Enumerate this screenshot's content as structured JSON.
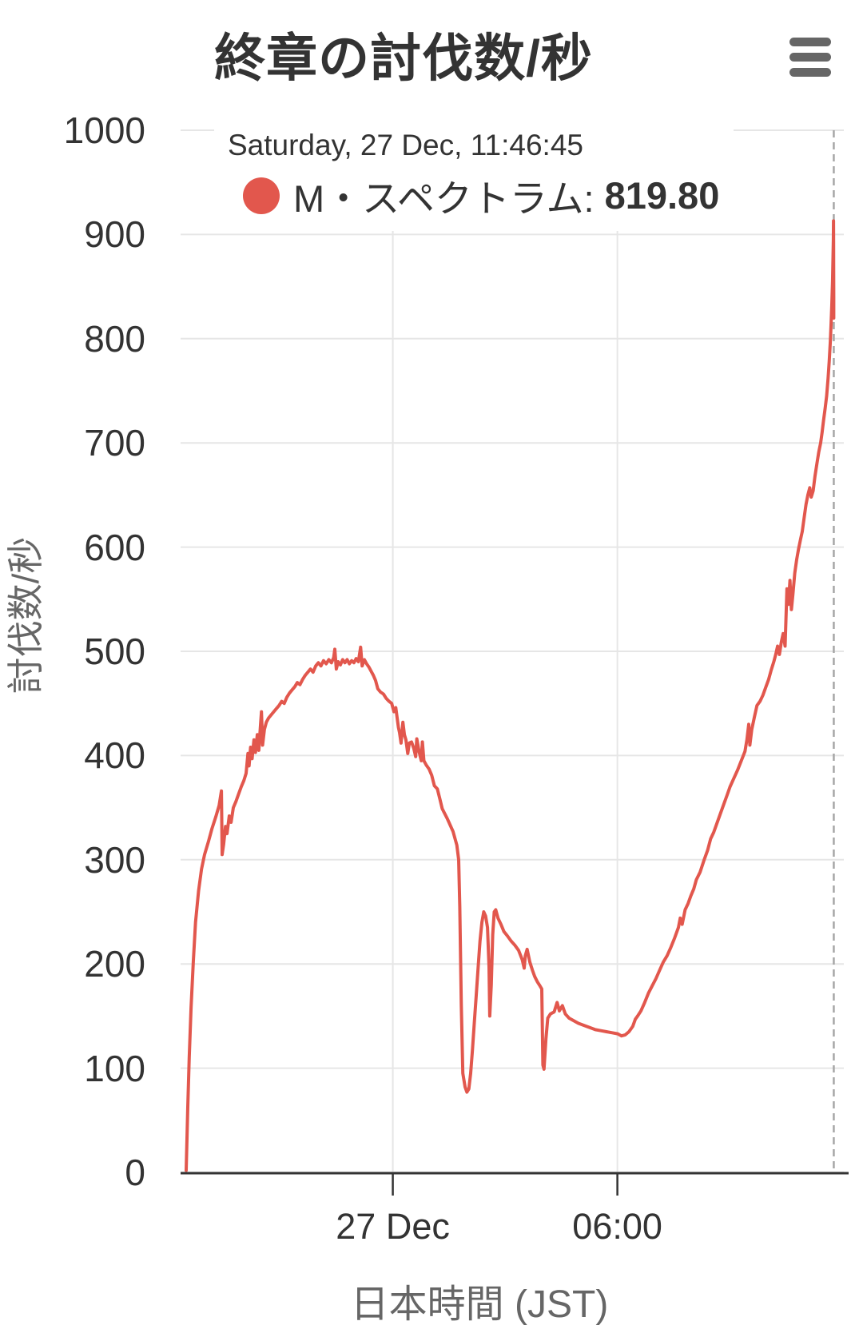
{
  "header": {
    "title": "終章の討伐数/秒",
    "menu_icon": "hamburger-icon"
  },
  "tooltip": {
    "date": "Saturday, 27 Dec, 11:46:45",
    "series_label": "M・スペクトラム: ",
    "value": "819.80",
    "marker_icon": "filled-circle"
  },
  "colors": {
    "accent": "#e2574d",
    "text_dark": "#333333",
    "text_gray": "#666666",
    "grid": "#e6e6e6",
    "axis": "#333333",
    "crosshair": "#a6a6a6",
    "icon": "#666666"
  },
  "chart_data": {
    "type": "line",
    "title": "終章の討伐数/秒",
    "xlabel": "日本時間 (JST)",
    "ylabel": "討伐数/秒",
    "ylim": [
      0,
      1000
    ],
    "yticks": [
      0,
      100,
      200,
      300,
      400,
      500,
      600,
      700,
      800,
      900,
      1000
    ],
    "xlim_hours": [
      -5.67,
      12.05
    ],
    "xticks": [
      {
        "hour": 0,
        "label": "27 Dec"
      },
      {
        "hour": 6,
        "label": "06:00"
      }
    ],
    "grid": true,
    "legend_position": "none",
    "crosshair_hour": 11.782,
    "x_unit": "hours relative to 27 Dec 00:00 JST",
    "series": [
      {
        "name": "M・スペクトラム",
        "color": "#e2574d",
        "last_value": 819.8,
        "points": [
          [
            -5.52,
            2
          ],
          [
            -5.48,
            60
          ],
          [
            -5.44,
            110
          ],
          [
            -5.39,
            158
          ],
          [
            -5.33,
            202
          ],
          [
            -5.27,
            240
          ],
          [
            -5.19,
            270
          ],
          [
            -5.11,
            291
          ],
          [
            -5.03,
            305
          ],
          [
            -4.93,
            317
          ],
          [
            -4.83,
            330
          ],
          [
            -4.73,
            341
          ],
          [
            -4.64,
            352
          ],
          [
            -4.58,
            366
          ],
          [
            -4.56,
            305
          ],
          [
            -4.52,
            315
          ],
          [
            -4.47,
            332
          ],
          [
            -4.43,
            325
          ],
          [
            -4.37,
            342
          ],
          [
            -4.32,
            336
          ],
          [
            -4.26,
            350
          ],
          [
            -4.19,
            356
          ],
          [
            -4.12,
            363
          ],
          [
            -4.05,
            370
          ],
          [
            -3.98,
            376
          ],
          [
            -3.92,
            383
          ],
          [
            -3.87,
            402
          ],
          [
            -3.84,
            390
          ],
          [
            -3.8,
            408
          ],
          [
            -3.76,
            397
          ],
          [
            -3.71,
            415
          ],
          [
            -3.67,
            403
          ],
          [
            -3.62,
            420
          ],
          [
            -3.58,
            405
          ],
          [
            -3.54,
            427
          ],
          [
            -3.51,
            442
          ],
          [
            -3.48,
            410
          ],
          [
            -3.43,
            425
          ],
          [
            -3.38,
            432
          ],
          [
            -3.32,
            436
          ],
          [
            -3.25,
            439
          ],
          [
            -3.18,
            442
          ],
          [
            -3.11,
            445
          ],
          [
            -3.04,
            448
          ],
          [
            -2.97,
            452
          ],
          [
            -2.9,
            450
          ],
          [
            -2.83,
            456
          ],
          [
            -2.76,
            460
          ],
          [
            -2.69,
            463
          ],
          [
            -2.62,
            466
          ],
          [
            -2.55,
            470
          ],
          [
            -2.48,
            468
          ],
          [
            -2.41,
            473
          ],
          [
            -2.34,
            477
          ],
          [
            -2.27,
            480
          ],
          [
            -2.2,
            483
          ],
          [
            -2.13,
            480
          ],
          [
            -2.06,
            486
          ],
          [
            -1.99,
            489
          ],
          [
            -1.92,
            486
          ],
          [
            -1.85,
            491
          ],
          [
            -1.78,
            488
          ],
          [
            -1.71,
            492
          ],
          [
            -1.64,
            489
          ],
          [
            -1.58,
            494
          ],
          [
            -1.55,
            502
          ],
          [
            -1.51,
            483
          ],
          [
            -1.46,
            490
          ],
          [
            -1.4,
            487
          ],
          [
            -1.34,
            492
          ],
          [
            -1.28,
            489
          ],
          [
            -1.22,
            492
          ],
          [
            -1.16,
            488
          ],
          [
            -1.1,
            491
          ],
          [
            -1.04,
            489
          ],
          [
            -0.98,
            493
          ],
          [
            -0.92,
            490
          ],
          [
            -0.86,
            504
          ],
          [
            -0.82,
            486
          ],
          [
            -0.76,
            492
          ],
          [
            -0.7,
            488
          ],
          [
            -0.64,
            485
          ],
          [
            -0.58,
            481
          ],
          [
            -0.52,
            477
          ],
          [
            -0.46,
            472
          ],
          [
            -0.4,
            464
          ],
          [
            -0.33,
            461
          ],
          [
            -0.25,
            459
          ],
          [
            -0.18,
            455
          ],
          [
            -0.1,
            452
          ],
          [
            -0.03,
            450
          ],
          [
            0.03,
            442
          ],
          [
            0.08,
            446
          ],
          [
            0.12,
            435
          ],
          [
            0.15,
            427
          ],
          [
            0.18,
            422
          ],
          [
            0.22,
            412
          ],
          [
            0.27,
            432
          ],
          [
            0.31,
            420
          ],
          [
            0.35,
            415
          ],
          [
            0.4,
            402
          ],
          [
            0.44,
            412
          ],
          [
            0.5,
            413
          ],
          [
            0.56,
            407
          ],
          [
            0.61,
            399
          ],
          [
            0.64,
            416
          ],
          [
            0.7,
            404
          ],
          [
            0.76,
            395
          ],
          [
            0.79,
            413
          ],
          [
            0.83,
            395
          ],
          [
            0.89,
            391
          ],
          [
            0.97,
            387
          ],
          [
            1.04,
            381
          ],
          [
            1.11,
            371
          ],
          [
            1.19,
            368
          ],
          [
            1.26,
            358
          ],
          [
            1.32,
            349
          ],
          [
            1.46,
            339
          ],
          [
            1.61,
            327
          ],
          [
            1.71,
            314
          ],
          [
            1.76,
            300
          ],
          [
            1.79,
            255
          ],
          [
            1.83,
            160
          ],
          [
            1.87,
            95
          ],
          [
            1.93,
            82
          ],
          [
            1.98,
            77
          ],
          [
            2.03,
            80
          ],
          [
            2.08,
            95
          ],
          [
            2.13,
            118
          ],
          [
            2.18,
            145
          ],
          [
            2.23,
            170
          ],
          [
            2.28,
            197
          ],
          [
            2.33,
            222
          ],
          [
            2.38,
            240
          ],
          [
            2.43,
            250
          ],
          [
            2.48,
            246
          ],
          [
            2.53,
            235
          ],
          [
            2.57,
            197
          ],
          [
            2.59,
            150
          ],
          [
            2.63,
            180
          ],
          [
            2.67,
            228
          ],
          [
            2.71,
            250
          ],
          [
            2.75,
            252
          ],
          [
            2.81,
            244
          ],
          [
            2.89,
            238
          ],
          [
            2.97,
            231
          ],
          [
            3.06,
            227
          ],
          [
            3.16,
            222
          ],
          [
            3.26,
            218
          ],
          [
            3.36,
            213
          ],
          [
            3.46,
            204
          ],
          [
            3.51,
            196
          ],
          [
            3.54,
            208
          ],
          [
            3.59,
            214
          ],
          [
            3.66,
            202
          ],
          [
            3.73,
            194
          ],
          [
            3.79,
            188
          ],
          [
            3.86,
            183
          ],
          [
            3.93,
            179
          ],
          [
            3.98,
            176
          ],
          [
            4.01,
            103
          ],
          [
            4.04,
            99
          ],
          [
            4.09,
            128
          ],
          [
            4.14,
            148
          ],
          [
            4.21,
            152
          ],
          [
            4.31,
            154
          ],
          [
            4.39,
            163
          ],
          [
            4.45,
            155
          ],
          [
            4.53,
            160
          ],
          [
            4.61,
            152
          ],
          [
            4.71,
            148
          ],
          [
            4.81,
            146
          ],
          [
            4.96,
            143
          ],
          [
            5.11,
            141
          ],
          [
            5.26,
            139
          ],
          [
            5.41,
            137
          ],
          [
            5.56,
            136
          ],
          [
            5.71,
            135
          ],
          [
            5.86,
            134
          ],
          [
            6.01,
            133
          ],
          [
            6.11,
            131
          ],
          [
            6.21,
            132
          ],
          [
            6.31,
            135
          ],
          [
            6.41,
            140
          ],
          [
            6.48,
            147
          ],
          [
            6.54,
            150
          ],
          [
            6.63,
            155
          ],
          [
            6.73,
            163
          ],
          [
            6.83,
            172
          ],
          [
            6.93,
            179
          ],
          [
            7.03,
            186
          ],
          [
            7.13,
            194
          ],
          [
            7.23,
            202
          ],
          [
            7.33,
            208
          ],
          [
            7.43,
            216
          ],
          [
            7.53,
            225
          ],
          [
            7.63,
            235
          ],
          [
            7.68,
            244
          ],
          [
            7.73,
            238
          ],
          [
            7.81,
            252
          ],
          [
            7.89,
            258
          ],
          [
            7.96,
            265
          ],
          [
            8.04,
            272
          ],
          [
            8.11,
            281
          ],
          [
            8.21,
            288
          ],
          [
            8.31,
            299
          ],
          [
            8.41,
            309
          ],
          [
            8.49,
            320
          ],
          [
            8.57,
            326
          ],
          [
            8.66,
            335
          ],
          [
            8.76,
            345
          ],
          [
            8.86,
            355
          ],
          [
            8.93,
            362
          ],
          [
            9.01,
            370
          ],
          [
            9.11,
            378
          ],
          [
            9.21,
            386
          ],
          [
            9.31,
            395
          ],
          [
            9.41,
            404
          ],
          [
            9.46,
            415
          ],
          [
            9.51,
            430
          ],
          [
            9.54,
            410
          ],
          [
            9.59,
            425
          ],
          [
            9.66,
            437
          ],
          [
            9.73,
            448
          ],
          [
            9.81,
            452
          ],
          [
            9.89,
            458
          ],
          [
            9.96,
            465
          ],
          [
            10.04,
            473
          ],
          [
            10.11,
            482
          ],
          [
            10.18,
            490
          ],
          [
            10.23,
            497
          ],
          [
            10.28,
            505
          ],
          [
            10.33,
            497
          ],
          [
            10.38,
            509
          ],
          [
            10.43,
            517
          ],
          [
            10.48,
            505
          ],
          [
            10.53,
            560
          ],
          [
            10.57,
            545
          ],
          [
            10.61,
            568
          ],
          [
            10.65,
            540
          ],
          [
            10.69,
            555
          ],
          [
            10.74,
            575
          ],
          [
            10.79,
            588
          ],
          [
            10.84,
            598
          ],
          [
            10.89,
            607
          ],
          [
            10.94,
            615
          ],
          [
            10.99,
            628
          ],
          [
            11.04,
            641
          ],
          [
            11.09,
            650
          ],
          [
            11.14,
            657
          ],
          [
            11.18,
            648
          ],
          [
            11.23,
            654
          ],
          [
            11.28,
            668
          ],
          [
            11.33,
            680
          ],
          [
            11.38,
            691
          ],
          [
            11.43,
            700
          ],
          [
            11.47,
            710
          ],
          [
            11.51,
            722
          ],
          [
            11.55,
            733
          ],
          [
            11.59,
            745
          ],
          [
            11.63,
            762
          ],
          [
            11.66,
            778
          ],
          [
            11.69,
            797
          ],
          [
            11.71,
            815
          ],
          [
            11.73,
            833
          ],
          [
            11.75,
            855
          ],
          [
            11.76,
            875
          ],
          [
            11.77,
            895
          ],
          [
            11.775,
            913
          ],
          [
            11.777,
            893
          ],
          [
            11.779,
            862
          ],
          [
            11.78,
            840
          ],
          [
            11.782,
            819.8
          ]
        ]
      }
    ]
  }
}
